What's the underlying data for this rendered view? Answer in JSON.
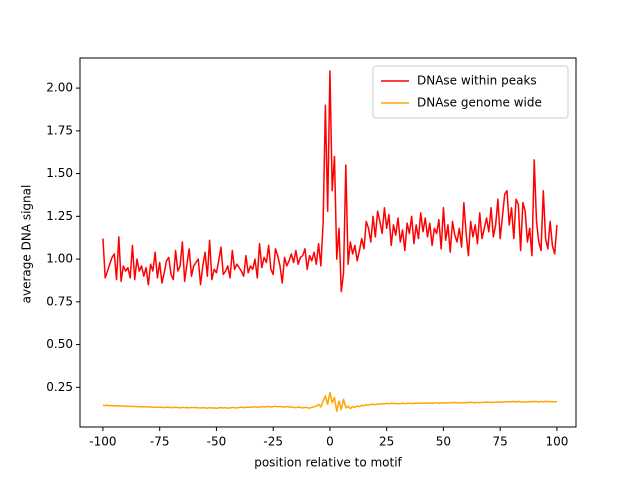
{
  "chart_data": {
    "type": "line",
    "x_label": "position relative to motif",
    "y_label": "average DNA signal",
    "legend": "upper right",
    "xlim": [
      -110.1,
      108.4
    ],
    "ylim": [
      0.018,
      2.176
    ],
    "xticks": [
      -100,
      -75,
      -50,
      -25,
      0,
      25,
      50,
      75,
      100
    ],
    "yticks": [
      0.25,
      {
        "value": 0.5,
        "label": "0.50"
      },
      0.75,
      {
        "value": 1.0,
        "label": "1.00"
      },
      1.25,
      {
        "value": 1.5,
        "label": "1.50"
      },
      1.75,
      {
        "value": 2.0,
        "label": "2.00"
      }
    ],
    "x": [
      -100,
      -99,
      -98,
      -97,
      -96,
      -95,
      -94,
      -93,
      -92,
      -91,
      -90,
      -89,
      -88,
      -87,
      -86,
      -85,
      -84,
      -83,
      -82,
      -81,
      -80,
      -79,
      -78,
      -77,
      -76,
      -75,
      -74,
      -73,
      -72,
      -71,
      -70,
      -69,
      -68,
      -67,
      -66,
      -65,
      -64,
      -63,
      -62,
      -61,
      -60,
      -59,
      -58,
      -57,
      -56,
      -55,
      -54,
      -53,
      -52,
      -51,
      -50,
      -49,
      -48,
      -47,
      -46,
      -45,
      -44,
      -43,
      -42,
      -41,
      -40,
      -39,
      -38,
      -37,
      -36,
      -35,
      -34,
      -33,
      -32,
      -31,
      -30,
      -29,
      -28,
      -27,
      -26,
      -25,
      -24,
      -23,
      -22,
      -21,
      -20,
      -19,
      -18,
      -17,
      -16,
      -15,
      -14,
      -13,
      -12,
      -11,
      -10,
      -9,
      -8,
      -7,
      -6,
      -5,
      -4,
      -3,
      -2,
      -1,
      0,
      1,
      2,
      3,
      4,
      5,
      6,
      7,
      8,
      9,
      10,
      11,
      12,
      13,
      14,
      15,
      16,
      17,
      18,
      19,
      20,
      21,
      22,
      23,
      24,
      25,
      26,
      27,
      28,
      29,
      30,
      31,
      32,
      33,
      34,
      35,
      36,
      37,
      38,
      39,
      40,
      41,
      42,
      43,
      44,
      45,
      46,
      47,
      48,
      49,
      50,
      51,
      52,
      53,
      54,
      55,
      56,
      57,
      58,
      59,
      60,
      61,
      62,
      63,
      64,
      65,
      66,
      67,
      68,
      69,
      70,
      71,
      72,
      73,
      74,
      75,
      76,
      77,
      78,
      79,
      80,
      81,
      82,
      83,
      84,
      85,
      86,
      87,
      88,
      89,
      90,
      91,
      92,
      93,
      94,
      95,
      96,
      97,
      98,
      99,
      100
    ],
    "series": [
      {
        "name": "DNAse within peaks",
        "color": "#ff0000",
        "values": [
          1.12,
          0.89,
          0.93,
          0.97,
          1.01,
          1.03,
          0.88,
          1.13,
          0.87,
          0.96,
          0.93,
          0.95,
          0.89,
          1.08,
          0.88,
          1.0,
          0.93,
          0.96,
          0.9,
          0.95,
          0.85,
          0.97,
          0.93,
          1.04,
          0.89,
          0.98,
          0.86,
          0.92,
          0.99,
          1.01,
          0.91,
          0.88,
          1.05,
          0.93,
          0.96,
          1.1,
          0.87,
          0.97,
          1.06,
          0.9,
          0.96,
          0.98,
          1.0,
          0.85,
          0.96,
          1.04,
          0.9,
          1.11,
          0.88,
          0.94,
          0.92,
          0.99,
          1.07,
          0.91,
          0.93,
          0.96,
          0.89,
          1.05,
          0.94,
          0.97,
          0.95,
          0.93,
          0.9,
          1.02,
          0.92,
          0.96,
          0.94,
          1.0,
          0.89,
          1.09,
          0.95,
          1.01,
          0.98,
          1.08,
          0.94,
          0.91,
          1.06,
          1.02,
          0.96,
          0.86,
          1.01,
          0.96,
          0.99,
          1.03,
          0.98,
          1.05,
          0.97,
          1.01,
          1.02,
          1.06,
          0.94,
          1.02,
          0.99,
          1.04,
          0.97,
          1.09,
          0.96,
          1.21,
          1.9,
          1.28,
          2.1,
          1.4,
          1.6,
          1.0,
          1.18,
          0.81,
          0.92,
          1.55,
          0.97,
          1.1,
          1.03,
          1.08,
          0.99,
          1.05,
          1.12,
          1.06,
          1.22,
          1.18,
          1.1,
          1.25,
          1.13,
          1.28,
          1.22,
          1.15,
          1.3,
          1.18,
          1.26,
          1.08,
          1.2,
          1.14,
          1.24,
          1.1,
          1.17,
          1.05,
          1.21,
          1.15,
          1.25,
          1.09,
          1.2,
          1.12,
          1.27,
          1.16,
          1.24,
          1.13,
          1.21,
          1.08,
          1.18,
          1.15,
          1.23,
          1.06,
          1.3,
          1.11,
          1.2,
          1.04,
          1.22,
          1.14,
          1.1,
          1.18,
          1.07,
          1.33,
          1.15,
          1.02,
          1.22,
          1.13,
          1.2,
          1.09,
          1.27,
          1.12,
          1.18,
          1.24,
          1.16,
          1.3,
          1.13,
          1.2,
          1.35,
          1.12,
          1.25,
          1.38,
          1.4,
          1.2,
          1.3,
          1.12,
          1.35,
          1.32,
          1.05,
          1.33,
          1.28,
          1.1,
          1.18,
          1.02,
          1.58,
          1.22,
          1.1,
          1.05,
          1.4,
          1.12,
          1.06,
          1.22,
          1.08,
          1.03,
          1.2
        ]
      },
      {
        "name": "DNAse genome wide",
        "color": "#ffa500",
        "values": [
          0.145,
          0.143,
          0.146,
          0.142,
          0.144,
          0.141,
          0.143,
          0.14,
          0.142,
          0.139,
          0.141,
          0.138,
          0.14,
          0.137,
          0.139,
          0.136,
          0.138,
          0.135,
          0.137,
          0.136,
          0.134,
          0.136,
          0.133,
          0.135,
          0.132,
          0.134,
          0.133,
          0.131,
          0.134,
          0.132,
          0.133,
          0.131,
          0.134,
          0.132,
          0.13,
          0.133,
          0.131,
          0.132,
          0.13,
          0.133,
          0.131,
          0.132,
          0.13,
          0.129,
          0.131,
          0.13,
          0.128,
          0.131,
          0.129,
          0.13,
          0.127,
          0.13,
          0.132,
          0.129,
          0.131,
          0.128,
          0.13,
          0.133,
          0.131,
          0.129,
          0.132,
          0.134,
          0.131,
          0.133,
          0.135,
          0.132,
          0.134,
          0.136,
          0.133,
          0.135,
          0.137,
          0.134,
          0.136,
          0.138,
          0.135,
          0.137,
          0.139,
          0.136,
          0.138,
          0.136,
          0.135,
          0.137,
          0.134,
          0.136,
          0.133,
          0.131,
          0.134,
          0.132,
          0.13,
          0.133,
          0.131,
          0.128,
          0.133,
          0.136,
          0.14,
          0.15,
          0.135,
          0.17,
          0.2,
          0.15,
          0.22,
          0.16,
          0.19,
          0.11,
          0.17,
          0.12,
          0.18,
          0.13,
          0.14,
          0.125,
          0.138,
          0.132,
          0.14,
          0.137,
          0.145,
          0.142,
          0.148,
          0.146,
          0.15,
          0.152,
          0.149,
          0.153,
          0.151,
          0.155,
          0.153,
          0.156,
          0.154,
          0.157,
          0.155,
          0.156,
          0.154,
          0.155,
          0.157,
          0.154,
          0.156,
          0.158,
          0.155,
          0.157,
          0.156,
          0.158,
          0.157,
          0.156,
          0.158,
          0.157,
          0.159,
          0.156,
          0.158,
          0.16,
          0.157,
          0.159,
          0.158,
          0.16,
          0.158,
          0.161,
          0.159,
          0.162,
          0.16,
          0.158,
          0.161,
          0.159,
          0.162,
          0.16,
          0.163,
          0.161,
          0.159,
          0.162,
          0.16,
          0.163,
          0.161,
          0.164,
          0.162,
          0.163,
          0.161,
          0.164,
          0.162,
          0.165,
          0.163,
          0.166,
          0.164,
          0.167,
          0.165,
          0.168,
          0.164,
          0.167,
          0.165,
          0.163,
          0.166,
          0.164,
          0.167,
          0.165,
          0.168,
          0.166,
          0.164,
          0.167,
          0.165,
          0.168,
          0.166,
          0.167,
          0.165,
          0.166,
          0.166
        ]
      }
    ]
  }
}
